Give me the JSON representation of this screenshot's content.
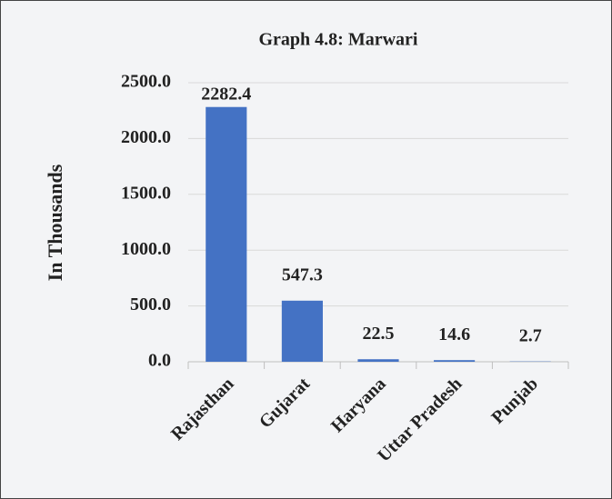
{
  "chart_data": {
    "type": "bar",
    "title": "Graph 4.8: Marwari",
    "y_label": "In Thousands",
    "categories": [
      "Rajasthan",
      "Gujarat",
      "Haryana",
      "Uttar Pradesh",
      "Punjab"
    ],
    "values": [
      2282.4,
      547.3,
      22.5,
      14.6,
      2.7
    ],
    "color": "#4472c4",
    "ylim": [
      0,
      2500
    ],
    "yticks": [
      {
        "value": 0,
        "label": "0.0"
      },
      {
        "value": 500,
        "label": "500.0"
      },
      {
        "value": 1000,
        "label": "1000.0"
      },
      {
        "value": 1500,
        "label": "1500.0"
      },
      {
        "value": 2000,
        "label": "2000.0"
      },
      {
        "value": 2500,
        "label": "2500.0"
      }
    ],
    "grid": true
  }
}
